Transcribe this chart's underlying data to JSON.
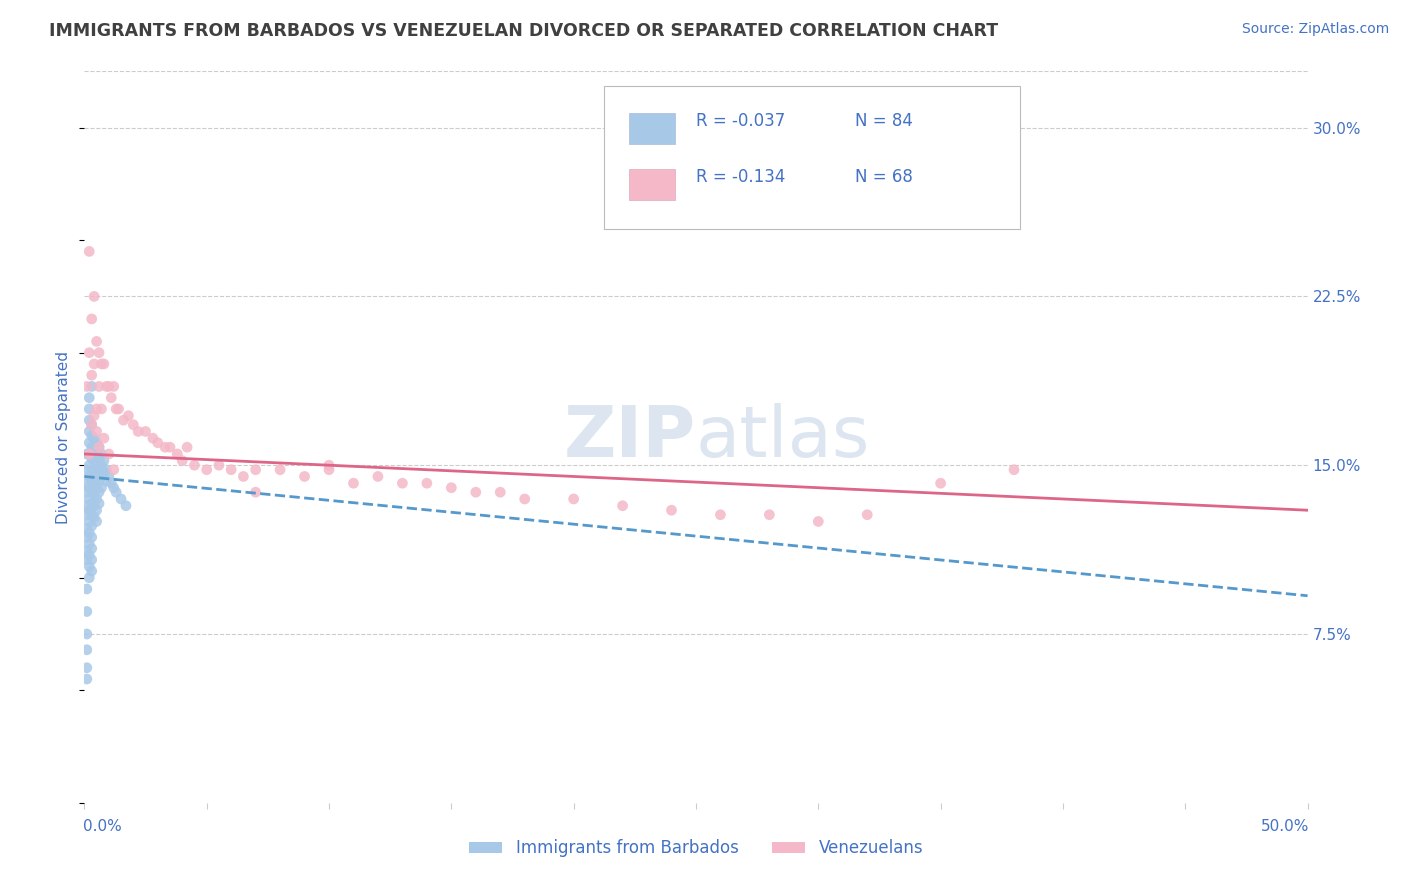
{
  "title": "IMMIGRANTS FROM BARBADOS VS VENEZUELAN DIVORCED OR SEPARATED CORRELATION CHART",
  "source": "Source: ZipAtlas.com",
  "ylabel": "Divorced or Separated",
  "legend_labels": [
    "Immigrants from Barbados",
    "Venezuelans"
  ],
  "legend_r": [
    "R = -0.037",
    "R = -0.134"
  ],
  "legend_n": [
    "N = 84",
    "N = 68"
  ],
  "xlim": [
    0.0,
    0.5
  ],
  "ylim": [
    0.0,
    0.325
  ],
  "xtick_left_label": "0.0%",
  "xtick_right_label": "50.0%",
  "yticks_right": [
    0.075,
    0.15,
    0.225,
    0.3
  ],
  "ytick_right_labels": [
    "7.5%",
    "15.0%",
    "22.5%",
    "30.0%"
  ],
  "blue_scatter_color": "#a8c8e8",
  "pink_scatter_color": "#f4b8c8",
  "trend_blue_color": "#5599cc",
  "trend_pink_color": "#dd6688",
  "blue_dots_x": [
    0.001,
    0.001,
    0.001,
    0.001,
    0.001,
    0.001,
    0.001,
    0.001,
    0.001,
    0.001,
    0.002,
    0.002,
    0.002,
    0.002,
    0.002,
    0.002,
    0.002,
    0.002,
    0.002,
    0.002,
    0.002,
    0.002,
    0.002,
    0.002,
    0.003,
    0.003,
    0.003,
    0.003,
    0.003,
    0.003,
    0.003,
    0.003,
    0.003,
    0.003,
    0.003,
    0.003,
    0.003,
    0.003,
    0.004,
    0.004,
    0.004,
    0.004,
    0.004,
    0.004,
    0.004,
    0.004,
    0.005,
    0.005,
    0.005,
    0.005,
    0.005,
    0.005,
    0.005,
    0.005,
    0.006,
    0.006,
    0.006,
    0.006,
    0.006,
    0.006,
    0.007,
    0.007,
    0.007,
    0.007,
    0.008,
    0.008,
    0.009,
    0.009,
    0.01,
    0.011,
    0.012,
    0.013,
    0.015,
    0.017,
    0.001,
    0.001,
    0.001,
    0.001,
    0.001,
    0.001,
    0.002,
    0.002,
    0.002,
    0.003
  ],
  "blue_dots_y": [
    0.155,
    0.148,
    0.142,
    0.138,
    0.132,
    0.128,
    0.122,
    0.118,
    0.112,
    0.108,
    0.165,
    0.16,
    0.155,
    0.15,
    0.145,
    0.14,
    0.135,
    0.13,
    0.125,
    0.12,
    0.115,
    0.11,
    0.105,
    0.1,
    0.168,
    0.163,
    0.158,
    0.153,
    0.148,
    0.143,
    0.138,
    0.133,
    0.128,
    0.123,
    0.118,
    0.113,
    0.108,
    0.103,
    0.162,
    0.157,
    0.152,
    0.147,
    0.142,
    0.137,
    0.132,
    0.127,
    0.16,
    0.155,
    0.15,
    0.145,
    0.14,
    0.135,
    0.13,
    0.125,
    0.158,
    0.153,
    0.148,
    0.143,
    0.138,
    0.133,
    0.155,
    0.15,
    0.145,
    0.14,
    0.152,
    0.147,
    0.148,
    0.143,
    0.145,
    0.142,
    0.14,
    0.138,
    0.135,
    0.132,
    0.095,
    0.085,
    0.075,
    0.068,
    0.06,
    0.055,
    0.175,
    0.18,
    0.17,
    0.185
  ],
  "pink_dots_x": [
    0.001,
    0.002,
    0.002,
    0.003,
    0.003,
    0.004,
    0.004,
    0.005,
    0.005,
    0.006,
    0.006,
    0.007,
    0.007,
    0.008,
    0.009,
    0.01,
    0.011,
    0.012,
    0.013,
    0.014,
    0.016,
    0.018,
    0.02,
    0.022,
    0.025,
    0.028,
    0.03,
    0.033,
    0.035,
    0.038,
    0.042,
    0.045,
    0.05,
    0.055,
    0.06,
    0.065,
    0.07,
    0.08,
    0.09,
    0.1,
    0.11,
    0.12,
    0.13,
    0.14,
    0.15,
    0.16,
    0.17,
    0.18,
    0.2,
    0.22,
    0.24,
    0.26,
    0.28,
    0.3,
    0.32,
    0.35,
    0.38,
    0.04,
    0.07,
    0.1,
    0.002,
    0.003,
    0.004,
    0.005,
    0.006,
    0.008,
    0.01,
    0.012
  ],
  "pink_dots_y": [
    0.185,
    0.245,
    0.2,
    0.215,
    0.19,
    0.225,
    0.195,
    0.205,
    0.175,
    0.2,
    0.185,
    0.195,
    0.175,
    0.195,
    0.185,
    0.185,
    0.18,
    0.185,
    0.175,
    0.175,
    0.17,
    0.172,
    0.168,
    0.165,
    0.165,
    0.162,
    0.16,
    0.158,
    0.158,
    0.155,
    0.158,
    0.15,
    0.148,
    0.15,
    0.148,
    0.145,
    0.148,
    0.148,
    0.145,
    0.15,
    0.142,
    0.145,
    0.142,
    0.142,
    0.14,
    0.138,
    0.138,
    0.135,
    0.135,
    0.132,
    0.13,
    0.128,
    0.128,
    0.125,
    0.128,
    0.142,
    0.148,
    0.152,
    0.138,
    0.148,
    0.155,
    0.168,
    0.172,
    0.165,
    0.158,
    0.162,
    0.155,
    0.148
  ],
  "background_color": "#ffffff",
  "grid_color": "#cccccc",
  "axis_label_color": "#4472c4",
  "title_color": "#404040",
  "watermark_color": "#dde6f0",
  "blue_trend_start_y": 0.145,
  "blue_trend_end_y": 0.092,
  "pink_trend_start_y": 0.155,
  "pink_trend_end_y": 0.13
}
